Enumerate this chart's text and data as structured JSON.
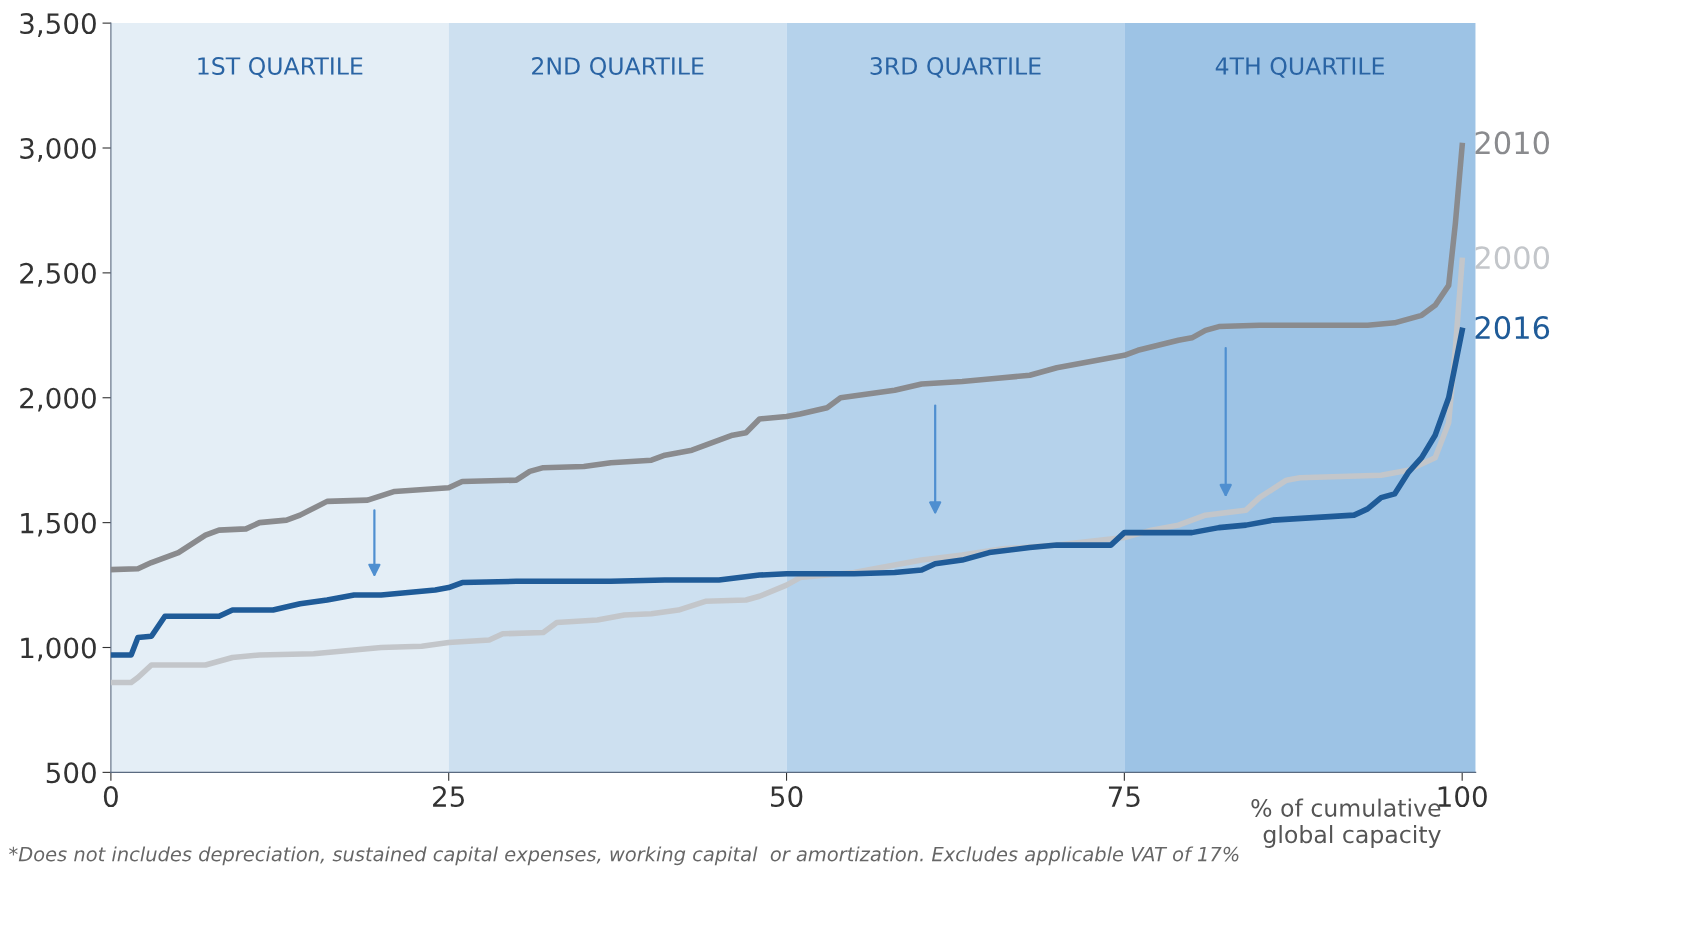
{
  "chart_data": {
    "type": "line",
    "xlabel": "% of cumulative\nglobal capacity",
    "xlim": [
      0,
      101
    ],
    "ylim": [
      500,
      3500
    ],
    "xticks": [
      0,
      25,
      50,
      75,
      100
    ],
    "yticks": [
      {
        "value": 500,
        "label": "500"
      },
      {
        "value": 1000,
        "label": "1,000"
      },
      {
        "value": 1500,
        "label": "1,500"
      },
      {
        "value": 2000,
        "label": "2,000"
      },
      {
        "value": 2500,
        "label": "2,500"
      },
      {
        "value": 3000,
        "label": "3,000"
      },
      {
        "value": 3500,
        "label": "3,500"
      }
    ],
    "grid": false,
    "legend": false,
    "marker": "none",
    "line_style": "solid",
    "bands": [
      {
        "axis": "x",
        "from": 0,
        "to": 25,
        "label": "1ST QUARTILE",
        "color": "#e4eef6"
      },
      {
        "axis": "x",
        "from": 25,
        "to": 50,
        "label": "2ND QUARTILE",
        "color": "#cde0f0"
      },
      {
        "axis": "x",
        "from": 50,
        "to": 75,
        "label": "3RD QUARTILE",
        "color": "#b5d2eb"
      },
      {
        "axis": "x",
        "from": 75,
        "to": 101,
        "label": "4TH QUARTILE",
        "color": "#9dc3e5"
      }
    ],
    "series": [
      {
        "name": "2010",
        "color": "#8a8b8e",
        "x": [
          0,
          2,
          3,
          5,
          7,
          8,
          10,
          11,
          13,
          14,
          16,
          19,
          21,
          25,
          26,
          30,
          31,
          32,
          35,
          37,
          40,
          41,
          43,
          44,
          46,
          47,
          48,
          50,
          51,
          53,
          54,
          56,
          58,
          60,
          63,
          65,
          68,
          70,
          73,
          75,
          76,
          79,
          80,
          81,
          82,
          85,
          93,
          95,
          97,
          98,
          99,
          99.5,
          100
        ],
        "values": [
          1312,
          1315,
          1340,
          1380,
          1450,
          1470,
          1475,
          1500,
          1510,
          1530,
          1585,
          1590,
          1625,
          1640,
          1665,
          1670,
          1705,
          1720,
          1725,
          1740,
          1750,
          1770,
          1790,
          1810,
          1850,
          1860,
          1915,
          1925,
          1935,
          1960,
          2000,
          2015,
          2030,
          2055,
          2065,
          2075,
          2090,
          2120,
          2150,
          2170,
          2190,
          2230,
          2240,
          2270,
          2285,
          2290,
          2290,
          2300,
          2330,
          2370,
          2450,
          2700,
          3010
        ]
      },
      {
        "name": "2000",
        "color": "#c3c6ca",
        "x": [
          0,
          1.5,
          2,
          3,
          7,
          9,
          11,
          15,
          17,
          20,
          23,
          25,
          28,
          29,
          32,
          33,
          36,
          38,
          40,
          42,
          44,
          47,
          48,
          50,
          51,
          55,
          58,
          60,
          63,
          66,
          70,
          75,
          77,
          79,
          81,
          84,
          85,
          87,
          88,
          94,
          96,
          98,
          99,
          99.5,
          100
        ],
        "values": [
          860,
          860,
          880,
          930,
          930,
          960,
          970,
          975,
          985,
          1000,
          1005,
          1020,
          1030,
          1055,
          1060,
          1100,
          1110,
          1130,
          1135,
          1150,
          1185,
          1190,
          1205,
          1250,
          1280,
          1300,
          1330,
          1350,
          1370,
          1395,
          1410,
          1440,
          1470,
          1490,
          1530,
          1550,
          1600,
          1670,
          1680,
          1690,
          1710,
          1760,
          1900,
          2200,
          2550
        ]
      },
      {
        "name": "2016",
        "color": "#1f5b98",
        "x": [
          0,
          1.5,
          2,
          3,
          4,
          8,
          9,
          12,
          14,
          16,
          18,
          20,
          22,
          24,
          25,
          26,
          30,
          34,
          37,
          41,
          45,
          48,
          50,
          55,
          58,
          60,
          61,
          63,
          65,
          68,
          70,
          74,
          75,
          80,
          82,
          84,
          86,
          89,
          92,
          93,
          94,
          95,
          96,
          97,
          98,
          99,
          100
        ],
        "values": [
          970,
          970,
          1040,
          1045,
          1125,
          1125,
          1150,
          1150,
          1175,
          1190,
          1210,
          1210,
          1220,
          1230,
          1240,
          1260,
          1265,
          1265,
          1265,
          1270,
          1270,
          1290,
          1295,
          1295,
          1300,
          1310,
          1335,
          1350,
          1380,
          1400,
          1410,
          1410,
          1460,
          1460,
          1480,
          1490,
          1510,
          1520,
          1530,
          1555,
          1600,
          1615,
          1700,
          1760,
          1850,
          2000,
          2270
        ]
      }
    ],
    "annotations": [
      "*Does not includes depreciation, sustained capital expenses, working capital  or amortization. Excludes applicable VAT of 17%"
    ]
  }
}
